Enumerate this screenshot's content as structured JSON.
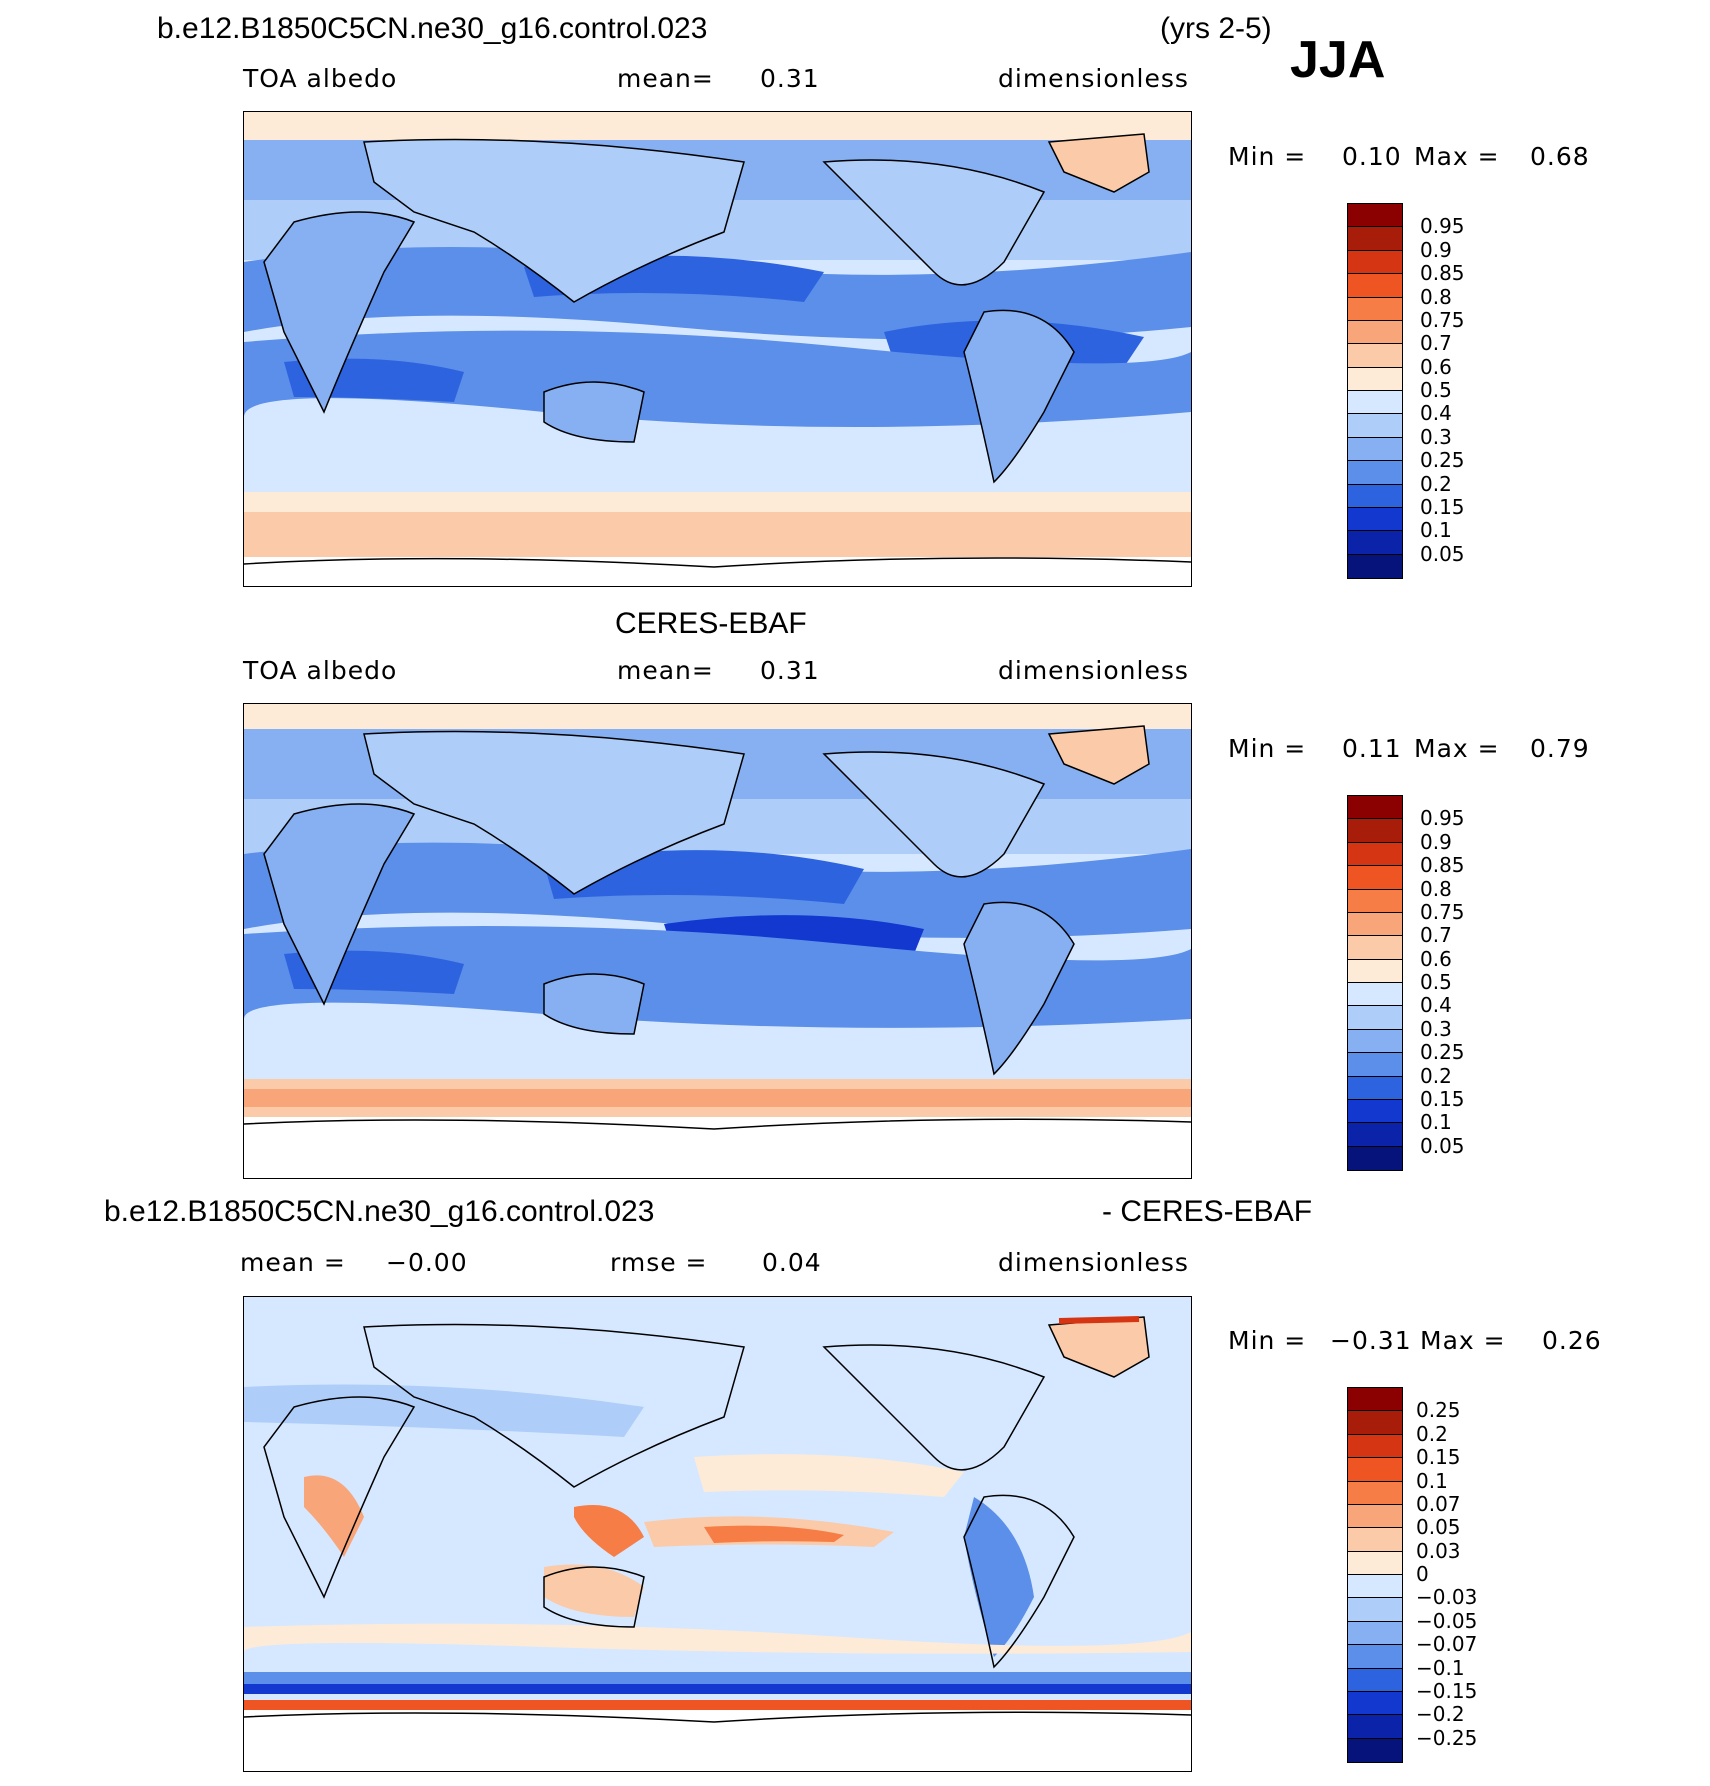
{
  "header": {
    "case_name": "b.e12.B1850C5CN.ne30_g16.control.023",
    "years": "(yrs 2-5)",
    "season": "JJA"
  },
  "panels": [
    {
      "id": "model",
      "title": "",
      "variable": "TOA albedo",
      "stat_label": "mean=",
      "stat_value": "0.31",
      "units": "dimensionless",
      "min_label": "Min =",
      "min_value": "0.10",
      "max_label": "Max =",
      "max_value": "0.68",
      "levels": [
        "0.95",
        "0.9",
        "0.85",
        "0.8",
        "0.75",
        "0.7",
        "0.6",
        "0.5",
        "0.4",
        "0.3",
        "0.25",
        "0.2",
        "0.15",
        "0.1",
        "0.05"
      ]
    },
    {
      "id": "obs",
      "title": "CERES-EBAF",
      "variable": "TOA albedo",
      "stat_label": "mean=",
      "stat_value": "0.31",
      "units": "dimensionless",
      "min_label": "Min =",
      "min_value": "0.11",
      "max_label": "Max =",
      "max_value": "0.79",
      "levels": [
        "0.95",
        "0.9",
        "0.85",
        "0.8",
        "0.75",
        "0.7",
        "0.6",
        "0.5",
        "0.4",
        "0.3",
        "0.25",
        "0.2",
        "0.15",
        "0.1",
        "0.05"
      ]
    },
    {
      "id": "diff",
      "title_left": "b.e12.B1850C5CN.ne30_g16.control.023",
      "title_right": "- CERES-EBAF",
      "mean_label": "mean =",
      "mean_value": "−0.00",
      "rmse_label": "rmse =",
      "rmse_value": "0.04",
      "units": "dimensionless",
      "min_label": "Min =",
      "min_value": "−0.31",
      "max_label": "Max =",
      "max_value": "0.26",
      "levels": [
        "0.25",
        "0.2",
        "0.15",
        "0.1",
        "0.07",
        "0.05",
        "0.03",
        "0",
        "−0.03",
        "−0.05",
        "−0.07",
        "−0.1",
        "−0.15",
        "−0.2",
        "−0.25"
      ]
    }
  ],
  "colorbar_colors": [
    "#8b0000",
    "#a81c0a",
    "#d53512",
    "#ee5522",
    "#f67d45",
    "#f9a57a",
    "#fbcaa8",
    "#fdebd8",
    "#d6e8ff",
    "#aecdf9",
    "#86b0f2",
    "#5b8fe9",
    "#2e63e0",
    "#1238cf",
    "#0a23a8",
    "#05137a"
  ]
}
